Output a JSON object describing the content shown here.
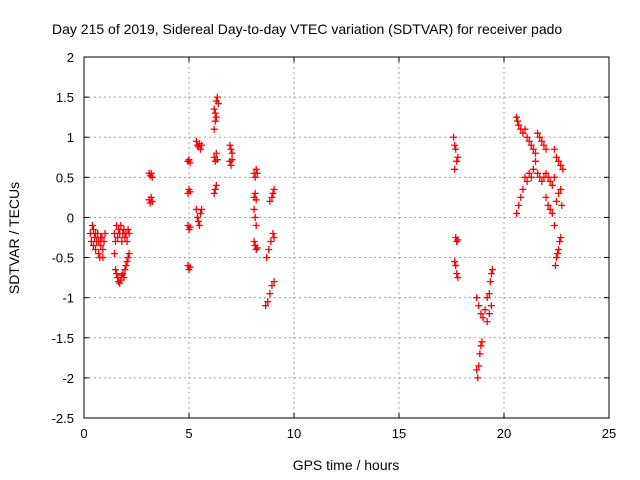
{
  "chart_data": {
    "type": "scatter",
    "title": "Day 215 of 2019, Sidereal Day-to-day VTEC variation (SDTVAR) for receiver pado",
    "xlabel": "GPS time / hours",
    "ylabel": "SDTVAR / TECUs",
    "xlim": [
      0,
      25
    ],
    "ylim": [
      -2.5,
      2
    ],
    "xticks": [
      0,
      5,
      10,
      15,
      20,
      25
    ],
    "xtick_labels": [
      "0",
      "5",
      "10",
      "15",
      "20",
      "25"
    ],
    "yticks": [
      -2.5,
      -2,
      -1.5,
      -1,
      -0.5,
      0,
      0.5,
      1,
      1.5,
      2
    ],
    "ytick_labels": [
      "-2.5",
      "-2",
      "-1.5",
      "-1",
      "-0.5",
      "0",
      "0.5",
      "1",
      "1.5",
      "2"
    ],
    "grid": true,
    "legend": "none",
    "marker": "plus",
    "color": "#ff0000",
    "points": [
      [
        0.3,
        -0.2
      ],
      [
        0.35,
        -0.3
      ],
      [
        0.4,
        -0.1
      ],
      [
        0.45,
        -0.35
      ],
      [
        0.5,
        -0.25
      ],
      [
        0.55,
        -0.4
      ],
      [
        0.6,
        -0.3
      ],
      [
        0.65,
        -0.2
      ],
      [
        0.7,
        -0.45
      ],
      [
        0.75,
        -0.5
      ],
      [
        0.8,
        -0.35
      ],
      [
        0.85,
        -0.25
      ],
      [
        0.9,
        -0.4
      ],
      [
        0.95,
        -0.3
      ],
      [
        1.0,
        -0.2
      ],
      [
        0.45,
        -0.15
      ],
      [
        0.55,
        -0.2
      ],
      [
        0.7,
        -0.3
      ],
      [
        0.8,
        -0.25
      ],
      [
        0.9,
        -0.5
      ],
      [
        1.45,
        -0.2
      ],
      [
        1.5,
        -0.3
      ],
      [
        1.55,
        -0.1
      ],
      [
        1.6,
        -0.25
      ],
      [
        1.65,
        -0.15
      ],
      [
        1.7,
        -0.2
      ],
      [
        1.75,
        -0.1
      ],
      [
        1.8,
        -0.3
      ],
      [
        1.85,
        -0.2
      ],
      [
        1.9,
        -0.15
      ],
      [
        1.95,
        -0.25
      ],
      [
        2.0,
        -0.2
      ],
      [
        2.05,
        -0.3
      ],
      [
        2.1,
        -0.15
      ],
      [
        2.15,
        -0.2
      ],
      [
        1.45,
        -0.45
      ],
      [
        1.5,
        -0.65
      ],
      [
        1.55,
        -0.7
      ],
      [
        1.6,
        -0.75
      ],
      [
        1.65,
        -0.8
      ],
      [
        1.7,
        -0.82
      ],
      [
        1.75,
        -0.78
      ],
      [
        1.8,
        -0.72
      ],
      [
        1.85,
        -0.7
      ],
      [
        1.9,
        -0.75
      ],
      [
        1.95,
        -0.65
      ],
      [
        2.0,
        -0.6
      ],
      [
        2.05,
        -0.55
      ],
      [
        2.1,
        -0.5
      ],
      [
        2.15,
        -0.45
      ],
      [
        3.1,
        0.55
      ],
      [
        3.15,
        0.52
      ],
      [
        3.2,
        0.55
      ],
      [
        3.25,
        0.5
      ],
      [
        3.1,
        0.22
      ],
      [
        3.15,
        0.18
      ],
      [
        3.2,
        0.25
      ],
      [
        3.25,
        0.2
      ],
      [
        4.95,
        0.7
      ],
      [
        5.0,
        0.72
      ],
      [
        5.05,
        0.68
      ],
      [
        4.95,
        0.3
      ],
      [
        5.0,
        0.35
      ],
      [
        5.05,
        0.32
      ],
      [
        4.95,
        -0.1
      ],
      [
        5.0,
        -0.15
      ],
      [
        5.05,
        -0.12
      ],
      [
        4.95,
        -0.6
      ],
      [
        5.0,
        -0.65
      ],
      [
        5.05,
        -0.62
      ],
      [
        5.35,
        0.95
      ],
      [
        5.4,
        0.9
      ],
      [
        5.45,
        0.88
      ],
      [
        5.5,
        0.92
      ],
      [
        5.55,
        0.85
      ],
      [
        5.6,
        0.9
      ],
      [
        5.35,
        0.1
      ],
      [
        5.4,
        0.0
      ],
      [
        5.45,
        -0.05
      ],
      [
        5.5,
        -0.1
      ],
      [
        5.55,
        0.05
      ],
      [
        5.6,
        0.1
      ],
      [
        6.2,
        1.35
      ],
      [
        6.25,
        1.3
      ],
      [
        6.3,
        1.45
      ],
      [
        6.35,
        1.5
      ],
      [
        6.4,
        1.42
      ],
      [
        6.2,
        1.1
      ],
      [
        6.25,
        1.2
      ],
      [
        6.3,
        1.25
      ],
      [
        6.2,
        0.75
      ],
      [
        6.25,
        0.7
      ],
      [
        6.3,
        0.8
      ],
      [
        6.35,
        0.72
      ],
      [
        6.2,
        0.3
      ],
      [
        6.25,
        0.35
      ],
      [
        6.3,
        0.4
      ],
      [
        6.95,
        0.9
      ],
      [
        7.0,
        0.85
      ],
      [
        7.05,
        0.8
      ],
      [
        6.95,
        0.7
      ],
      [
        7.0,
        0.65
      ],
      [
        7.05,
        0.72
      ],
      [
        8.1,
        0.55
      ],
      [
        8.15,
        0.5
      ],
      [
        8.2,
        0.6
      ],
      [
        8.25,
        0.55
      ],
      [
        8.1,
        0.25
      ],
      [
        8.15,
        0.3
      ],
      [
        8.2,
        0.22
      ],
      [
        8.1,
        0.1
      ],
      [
        8.15,
        0.0
      ],
      [
        8.2,
        -0.1
      ],
      [
        8.1,
        -0.3
      ],
      [
        8.15,
        -0.35
      ],
      [
        8.2,
        -0.4
      ],
      [
        8.25,
        -0.38
      ],
      [
        8.65,
        -1.1
      ],
      [
        8.75,
        -1.05
      ],
      [
        8.85,
        -0.95
      ],
      [
        8.95,
        -0.85
      ],
      [
        9.05,
        -0.8
      ],
      [
        8.7,
        -0.5
      ],
      [
        8.8,
        -0.4
      ],
      [
        8.9,
        -0.3
      ],
      [
        9.0,
        -0.2
      ],
      [
        9.05,
        -0.25
      ],
      [
        8.85,
        0.2
      ],
      [
        8.95,
        0.25
      ],
      [
        9.0,
        0.3
      ],
      [
        9.05,
        0.35
      ],
      [
        17.6,
        1.0
      ],
      [
        17.65,
        0.9
      ],
      [
        17.7,
        0.85
      ],
      [
        17.75,
        0.7
      ],
      [
        17.8,
        0.75
      ],
      [
        17.65,
        0.6
      ],
      [
        17.7,
        -0.25
      ],
      [
        17.75,
        -0.3
      ],
      [
        17.8,
        -0.28
      ],
      [
        17.65,
        -0.55
      ],
      [
        17.7,
        -0.6
      ],
      [
        17.75,
        -0.7
      ],
      [
        17.8,
        -0.75
      ],
      [
        18.7,
        -1.9
      ],
      [
        18.75,
        -2.0
      ],
      [
        18.8,
        -1.85
      ],
      [
        18.85,
        -1.7
      ],
      [
        18.9,
        -1.6
      ],
      [
        18.95,
        -1.55
      ],
      [
        18.7,
        -1.0
      ],
      [
        18.8,
        -1.1
      ],
      [
        18.9,
        -1.2
      ],
      [
        19.0,
        -1.25
      ],
      [
        19.1,
        -1.15
      ],
      [
        19.2,
        -1.3
      ],
      [
        19.3,
        -1.2
      ],
      [
        19.4,
        -1.1
      ],
      [
        19.3,
        -0.95
      ],
      [
        19.35,
        -0.8
      ],
      [
        19.4,
        -0.7
      ],
      [
        19.45,
        -0.65
      ],
      [
        19.2,
        -1.0
      ],
      [
        20.6,
        1.25
      ],
      [
        20.65,
        1.2
      ],
      [
        20.7,
        1.15
      ],
      [
        20.8,
        1.1
      ],
      [
        20.9,
        1.05
      ],
      [
        21.0,
        1.1
      ],
      [
        21.1,
        1.0
      ],
      [
        21.2,
        0.95
      ],
      [
        21.3,
        0.9
      ],
      [
        21.4,
        0.85
      ],
      [
        21.5,
        0.8
      ],
      [
        21.6,
        1.05
      ],
      [
        21.7,
        1.0
      ],
      [
        21.8,
        0.95
      ],
      [
        21.9,
        0.9
      ],
      [
        22.0,
        0.85
      ],
      [
        20.6,
        0.05
      ],
      [
        20.7,
        0.15
      ],
      [
        20.8,
        0.25
      ],
      [
        20.9,
        0.35
      ],
      [
        21.0,
        0.5
      ],
      [
        21.1,
        0.45
      ],
      [
        21.2,
        0.55
      ],
      [
        21.3,
        0.5
      ],
      [
        21.4,
        0.6
      ],
      [
        21.5,
        0.7
      ],
      [
        21.6,
        0.55
      ],
      [
        21.7,
        0.5
      ],
      [
        21.8,
        0.45
      ],
      [
        21.9,
        0.5
      ],
      [
        22.0,
        0.55
      ],
      [
        22.1,
        0.5
      ],
      [
        22.2,
        0.45
      ],
      [
        22.3,
        0.4
      ],
      [
        22.4,
        0.5
      ],
      [
        22.0,
        0.25
      ],
      [
        22.1,
        0.15
      ],
      [
        22.2,
        0.1
      ],
      [
        22.3,
        0.05
      ],
      [
        22.4,
        -0.1
      ],
      [
        22.5,
        0.2
      ],
      [
        22.6,
        0.3
      ],
      [
        22.7,
        0.35
      ],
      [
        22.75,
        0.15
      ],
      [
        22.45,
        -0.6
      ],
      [
        22.5,
        -0.5
      ],
      [
        22.55,
        -0.45
      ],
      [
        22.6,
        -0.4
      ],
      [
        22.65,
        -0.3
      ],
      [
        22.7,
        -0.25
      ],
      [
        22.4,
        0.85
      ],
      [
        22.5,
        0.75
      ],
      [
        22.6,
        0.7
      ],
      [
        22.7,
        0.65
      ],
      [
        22.8,
        0.6
      ]
    ]
  }
}
